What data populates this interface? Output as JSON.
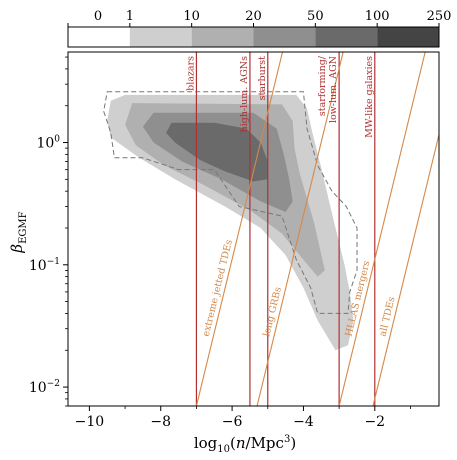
{
  "chart_data": {
    "type": "heatmap",
    "xlabel": "log₁₀(n/Mpc³)",
    "ylabel": "β_EGMF",
    "xlabel_parts": {
      "prefix": "log",
      "sub": "10",
      "mid": "(",
      "italic": "n",
      "slash": "/Mpc",
      "sup": "3",
      "suffix": ")"
    },
    "ylabel_parts": {
      "main": "β",
      "sub": "EGMF"
    },
    "xlim": [
      -10.6,
      -0.2
    ],
    "ylim": [
      0.007,
      5.5
    ],
    "yscale": "log",
    "xticks": [
      -10,
      -8,
      -6,
      -4,
      -2
    ],
    "xtick_labels": [
      "−10",
      "−8",
      "−6",
      "−4",
      "−2"
    ],
    "yticks": [
      0.01,
      0.1,
      1
    ],
    "ytick_parts": [
      {
        "base": "10",
        "exp": "−2"
      },
      {
        "base": "10",
        "exp": "−1"
      },
      {
        "base": "10",
        "exp": "0"
      }
    ],
    "colorbar": {
      "boundaries": [
        0,
        1,
        10,
        20,
        50,
        100,
        250
      ],
      "labels": [
        "0",
        "1",
        "10",
        "20",
        "50",
        "100",
        "250"
      ],
      "colors": [
        "#ffffff",
        "#cfcfcf",
        "#b0b0b0",
        "#8f8f8f",
        "#6a6a6a",
        "#444444"
      ]
    },
    "contours": [
      {
        "level": "1-10",
        "color": "#cfcfcf",
        "points": [
          [
            -9.4,
            2.2
          ],
          [
            -9.0,
            2.45
          ],
          [
            -4.2,
            2.45
          ],
          [
            -3.9,
            1.9
          ],
          [
            -3.75,
            1.2
          ],
          [
            -3.5,
            0.62
          ],
          [
            -3.3,
            0.35
          ],
          [
            -3.1,
            0.2
          ],
          [
            -2.85,
            0.1
          ],
          [
            -2.7,
            0.06
          ],
          [
            -2.6,
            0.035
          ],
          [
            -2.75,
            0.022
          ],
          [
            -3.1,
            0.02
          ],
          [
            -3.6,
            0.035
          ],
          [
            -4.0,
            0.065
          ],
          [
            -4.5,
            0.12
          ],
          [
            -5.2,
            0.2
          ],
          [
            -6.2,
            0.3
          ],
          [
            -7.6,
            0.5
          ],
          [
            -8.6,
            0.75
          ],
          [
            -9.4,
            1.1
          ],
          [
            -9.5,
            1.5
          ]
        ]
      },
      {
        "level": "10-20",
        "color": "#b0b0b0",
        "points": [
          [
            -8.8,
            2.1
          ],
          [
            -4.6,
            2.05
          ],
          [
            -4.3,
            1.5
          ],
          [
            -4.25,
            0.9
          ],
          [
            -4.1,
            0.55
          ],
          [
            -3.9,
            0.35
          ],
          [
            -3.7,
            0.22
          ],
          [
            -3.55,
            0.14
          ],
          [
            -3.4,
            0.09
          ],
          [
            -3.6,
            0.08
          ],
          [
            -4.0,
            0.11
          ],
          [
            -4.6,
            0.18
          ],
          [
            -5.5,
            0.28
          ],
          [
            -6.8,
            0.45
          ],
          [
            -7.9,
            0.65
          ],
          [
            -8.7,
            0.95
          ],
          [
            -9.0,
            1.4
          ]
        ]
      },
      {
        "level": "20-50",
        "color": "#8f8f8f",
        "points": [
          [
            -8.2,
            1.75
          ],
          [
            -5.4,
            1.75
          ],
          [
            -4.75,
            1.3
          ],
          [
            -4.55,
            0.8
          ],
          [
            -4.4,
            0.5
          ],
          [
            -4.3,
            0.33
          ],
          [
            -4.5,
            0.27
          ],
          [
            -5.2,
            0.33
          ],
          [
            -6.3,
            0.5
          ],
          [
            -7.4,
            0.7
          ],
          [
            -8.2,
            1.0
          ],
          [
            -8.5,
            1.35
          ]
        ]
      },
      {
        "level": "50-100",
        "color": "#6a6a6a",
        "points": [
          [
            -7.7,
            1.45
          ],
          [
            -6.5,
            1.45
          ],
          [
            -5.6,
            1.3
          ],
          [
            -5.2,
            1.0
          ],
          [
            -5.0,
            0.7
          ],
          [
            -5.0,
            0.5
          ],
          [
            -5.4,
            0.48
          ],
          [
            -6.2,
            0.58
          ],
          [
            -6.9,
            0.72
          ],
          [
            -7.6,
            1.0
          ],
          [
            -7.85,
            1.2
          ]
        ]
      }
    ],
    "dashed_contour": [
      [
        -9.5,
        2.6
      ],
      [
        -4.0,
        2.6
      ],
      [
        -3.9,
        1.3
      ],
      [
        -3.6,
        0.65
      ],
      [
        -3.2,
        0.4
      ],
      [
        -2.8,
        0.3
      ],
      [
        -2.5,
        0.2
      ],
      [
        -2.5,
        0.09
      ],
      [
        -2.7,
        0.06
      ],
      [
        -2.75,
        0.04
      ],
      [
        -3.3,
        0.04
      ],
      [
        -3.6,
        0.04
      ],
      [
        -3.8,
        0.065
      ],
      [
        -4.2,
        0.11
      ],
      [
        -4.6,
        0.25
      ],
      [
        -5.8,
        0.3
      ],
      [
        -6.5,
        0.6
      ],
      [
        -7.5,
        0.6
      ],
      [
        -8.5,
        0.75
      ],
      [
        -9.3,
        0.75
      ],
      [
        -9.4,
        1.2
      ],
      [
        -9.6,
        1.8
      ]
    ],
    "vertical_lines": [
      {
        "x": -7.0,
        "label": "blazars"
      },
      {
        "x": -5.5,
        "label": "high-lum. AGNs"
      },
      {
        "x": -5.0,
        "label": "starburst"
      },
      {
        "x": -3.0,
        "label": [
          "starforming/",
          "low-lum. AGN"
        ]
      },
      {
        "x": -2.0,
        "label": "MW-like galaxies"
      }
    ],
    "diagonal_lines": [
      {
        "x_at_bottom": -7.0,
        "label": "extreme jetted TDEs"
      },
      {
        "x_at_bottom": -5.3,
        "label": "long GRBs"
      },
      {
        "x_at_bottom": -3.0,
        "label": "HLLAS mergers"
      },
      {
        "x_at_bottom": -2.05,
        "label": "all TDEs"
      }
    ]
  }
}
